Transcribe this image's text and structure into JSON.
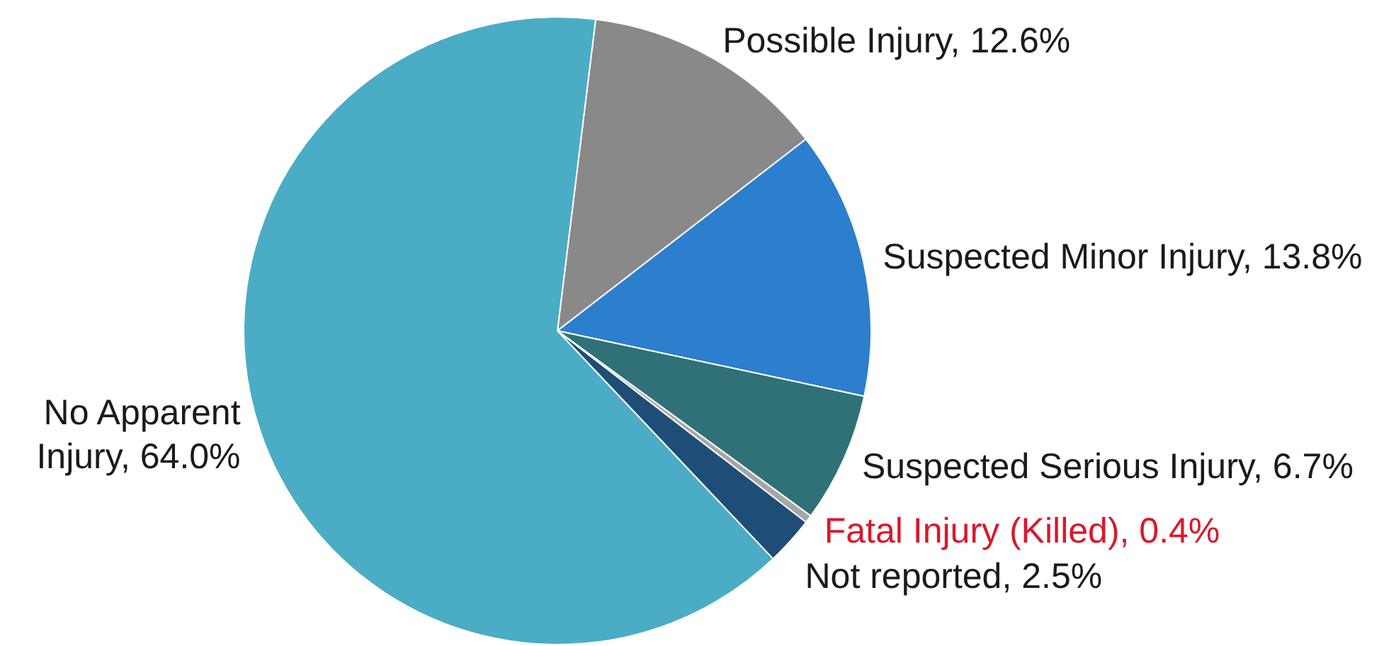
{
  "chart_data": {
    "type": "pie",
    "categories": [
      "Possible Injury, 12.6%",
      "Suspected Minor Injury, 13.8%",
      "Suspected Serious Injury, 6.7%",
      "Fatal Injury (Killed), 0.4%",
      "Not reported, 2.5%",
      "No Apparent Injury, 64.0%"
    ],
    "values": [
      12.6,
      13.8,
      6.7,
      0.4,
      2.5,
      64.0
    ],
    "colors": [
      "#898989",
      "#2b7fcc",
      "#2f7177",
      "#a6a6a6",
      "#1e4d78",
      "#4bacc5"
    ],
    "legend": false
  }
}
